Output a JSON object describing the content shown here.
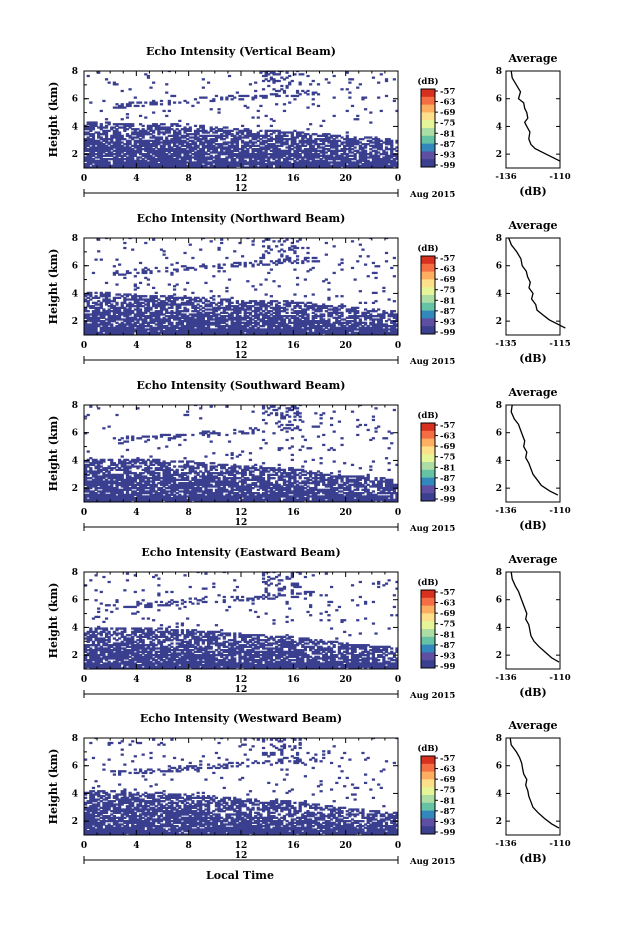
{
  "figure": {
    "xlabel": "Local Time",
    "date_label": "Aug 2015",
    "ylabel": "Height (km)"
  },
  "colorbar": {
    "unit_label": "(dB)",
    "ticks": [
      "-57",
      "-63",
      "-69",
      "-75",
      "-81",
      "-87",
      "-93",
      "-99"
    ],
    "colors": [
      "#d7301f",
      "#f46d43",
      "#fdae61",
      "#fee08b",
      "#e6f598",
      "#abdda4",
      "#66c2a5",
      "#3288bd",
      "#5e4fa2",
      "#3a3f8f"
    ]
  },
  "chart_data": [
    {
      "type": "heatmap",
      "title": "Echo Intensity (Vertical Beam)",
      "ylabel": "Height (km)",
      "xlabel": "",
      "x_ticks": [
        "0",
        "4",
        "8",
        "12",
        "16",
        "20",
        "0"
      ],
      "x_lower_tick": "12",
      "y_ticks": [
        "8",
        "6",
        "4",
        "2"
      ],
      "xlim": [
        0,
        24
      ],
      "ylim": [
        1,
        8
      ],
      "fill_color": "#3a3f8f",
      "dense_top_km": [
        4.3,
        4.2,
        4.1,
        3.8,
        3.6,
        3.3,
        3.0
      ],
      "profile": {
        "title": "Average",
        "xlabel": "(dB)",
        "x_ticks": [
          "-136",
          "-110"
        ],
        "xlim": [
          -136,
          -110
        ],
        "y_ticks": [
          "8",
          "6",
          "4",
          "2"
        ],
        "ylim": [
          1,
          8
        ],
        "x": [
          -133.5,
          -133,
          -131,
          -129,
          -130,
          -127.5,
          -127,
          -126,
          -125.5,
          -127,
          -126,
          -124.5,
          -125,
          -124,
          -122,
          -118,
          -114,
          -110
        ],
        "y": [
          8,
          7.5,
          7.0,
          6.5,
          6.0,
          5.7,
          5.3,
          5.0,
          4.6,
          4.3,
          4.0,
          3.6,
          3.1,
          2.7,
          2.4,
          2.1,
          1.8,
          1.5
        ]
      }
    },
    {
      "type": "heatmap",
      "title": "Echo Intensity (Northward Beam)",
      "ylabel": "Height (km)",
      "xlabel": "",
      "x_ticks": [
        "0",
        "4",
        "8",
        "12",
        "16",
        "20",
        "0"
      ],
      "x_lower_tick": "12",
      "y_ticks": [
        "8",
        "6",
        "4",
        "2"
      ],
      "xlim": [
        0,
        24
      ],
      "ylim": [
        1,
        8
      ],
      "fill_color": "#3a3f8f",
      "dense_top_km": [
        4.1,
        3.9,
        3.7,
        3.5,
        3.4,
        3.0,
        2.7
      ],
      "profile": {
        "title": "Average",
        "xlabel": "(dB)",
        "x_ticks": [
          "-135",
          "-115"
        ],
        "xlim": [
          -135,
          -115
        ],
        "y_ticks": [
          "8",
          "6",
          "4",
          "2"
        ],
        "ylim": [
          1,
          8
        ],
        "x": [
          -134,
          -133,
          -131,
          -129.5,
          -129,
          -127.5,
          -127,
          -126,
          -126.5,
          -125,
          -125.5,
          -124,
          -123.5,
          -121,
          -119,
          -116,
          -113
        ],
        "y": [
          8,
          7.5,
          7.0,
          6.5,
          6.0,
          5.6,
          5.2,
          4.8,
          4.4,
          4.0,
          3.6,
          3.2,
          2.8,
          2.4,
          2.1,
          1.8,
          1.5
        ]
      }
    },
    {
      "type": "heatmap",
      "title": "Echo Intensity (Southward Beam)",
      "ylabel": "Height (km)",
      "xlabel": "",
      "x_ticks": [
        "0",
        "4",
        "8",
        "12",
        "16",
        "20",
        "0"
      ],
      "x_lower_tick": "12",
      "y_ticks": [
        "8",
        "6",
        "4",
        "2"
      ],
      "xlim": [
        0,
        24
      ],
      "ylim": [
        1,
        8
      ],
      "fill_color": "#3a3f8f",
      "dense_top_km": [
        4.0,
        4.1,
        3.9,
        3.6,
        3.4,
        2.9,
        2.6
      ],
      "profile": {
        "title": "Average",
        "xlabel": "(dB)",
        "x_ticks": [
          "-136",
          "-110"
        ],
        "xlim": [
          -136,
          -110
        ],
        "y_ticks": [
          "8",
          "6",
          "4",
          "2"
        ],
        "ylim": [
          1,
          8
        ],
        "x": [
          -133,
          -133.5,
          -132,
          -130,
          -129,
          -128,
          -127,
          -127.5,
          -126,
          -126.5,
          -125,
          -124,
          -123,
          -121,
          -119,
          -115,
          -111
        ],
        "y": [
          8,
          7.5,
          7.0,
          6.6,
          6.2,
          5.8,
          5.4,
          5.0,
          4.6,
          4.2,
          3.8,
          3.4,
          3.0,
          2.6,
          2.2,
          1.8,
          1.5
        ]
      }
    },
    {
      "type": "heatmap",
      "title": "Echo Intensity (Eastward Beam)",
      "ylabel": "Height (km)",
      "xlabel": "",
      "x_ticks": [
        "0",
        "4",
        "8",
        "12",
        "16",
        "20",
        "0"
      ],
      "x_lower_tick": "12",
      "y_ticks": [
        "8",
        "6",
        "4",
        "2"
      ],
      "xlim": [
        0,
        24
      ],
      "ylim": [
        1,
        8
      ],
      "fill_color": "#3a3f8f",
      "dense_top_km": [
        4.0,
        4.0,
        3.8,
        3.5,
        3.3,
        2.8,
        2.5
      ],
      "profile": {
        "title": "Average",
        "xlabel": "(dB)",
        "x_ticks": [
          "-136",
          "-110"
        ],
        "xlim": [
          -136,
          -110
        ],
        "y_ticks": [
          "8",
          "6",
          "4",
          "2"
        ],
        "ylim": [
          1,
          8
        ],
        "x": [
          -133.5,
          -133,
          -131.5,
          -130,
          -129,
          -128,
          -127,
          -126,
          -126.5,
          -125,
          -124.5,
          -124,
          -122.5,
          -120,
          -117,
          -114,
          -110.5
        ],
        "y": [
          8,
          7.5,
          7.0,
          6.6,
          6.2,
          5.8,
          5.4,
          5.0,
          4.6,
          4.2,
          3.8,
          3.4,
          3.0,
          2.6,
          2.2,
          1.8,
          1.5
        ]
      }
    },
    {
      "type": "heatmap",
      "title": "Echo Intensity (Westward Beam)",
      "ylabel": "Height (km)",
      "xlabel": "Local Time",
      "x_ticks": [
        "0",
        "4",
        "8",
        "12",
        "16",
        "20",
        "0"
      ],
      "x_lower_tick": "12",
      "y_ticks": [
        "8",
        "6",
        "4",
        "2"
      ],
      "xlim": [
        0,
        24
      ],
      "ylim": [
        1,
        8
      ],
      "fill_color": "#3a3f8f",
      "dense_top_km": [
        4.2,
        4.1,
        3.9,
        3.6,
        3.4,
        2.9,
        2.6
      ],
      "profile": {
        "title": "Average",
        "xlabel": "(dB)",
        "x_ticks": [
          "-136",
          "-110"
        ],
        "xlim": [
          -136,
          -110
        ],
        "y_ticks": [
          "8",
          "6",
          "4",
          "2"
        ],
        "ylim": [
          1,
          8
        ],
        "x": [
          -134,
          -133.5,
          -131,
          -129.5,
          -128.5,
          -128,
          -127.5,
          -126,
          -126.5,
          -125.5,
          -125,
          -124,
          -123,
          -120.5,
          -117.5,
          -114,
          -110.5
        ],
        "y": [
          8,
          7.5,
          7.0,
          6.6,
          6.2,
          5.8,
          5.4,
          5.0,
          4.6,
          4.2,
          3.8,
          3.4,
          3.0,
          2.6,
          2.2,
          1.8,
          1.5
        ]
      }
    }
  ]
}
